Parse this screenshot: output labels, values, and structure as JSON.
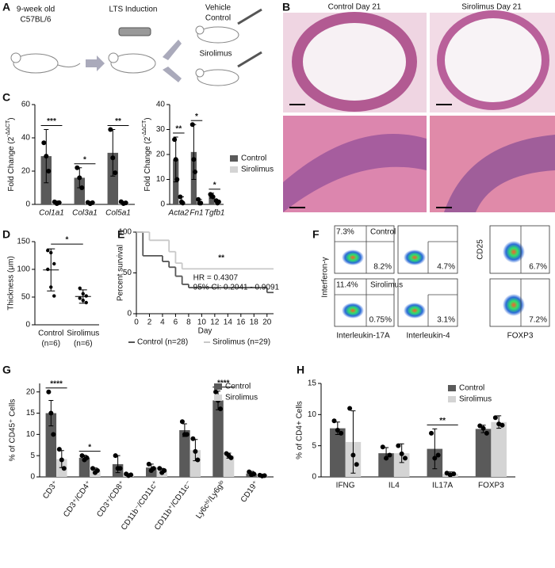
{
  "panel_labels": [
    "A",
    "B",
    "C",
    "D",
    "E",
    "F",
    "G",
    "H"
  ],
  "schematic": {
    "steps": [
      "9-week old",
      "C57BL/6",
      "LTS Induction",
      "Vehicle",
      "Control",
      "Sirolimus"
    ]
  },
  "histology": {
    "titles": [
      "Control Day 21",
      "Sirolimus Day 21"
    ]
  },
  "flow": {
    "top": [
      "7.3%",
      "Control",
      "8.2%",
      "4.7%",
      "6.7%"
    ],
    "bottom": [
      "11.4%",
      "Sirolimus",
      "0.75%",
      "3.1%",
      "7.2%"
    ],
    "axis_labels": [
      "Interferon-γ",
      "Interleukin-17A",
      "Interleukin-4",
      "CD25",
      "FOXP3"
    ]
  },
  "chart_data": [
    {
      "type": "bar",
      "y_label": [
        "Fold Change (2",
        "-ΔΔCT",
        ")"
      ],
      "categories": [
        "Col1a1",
        "Col3a1",
        "Col5a1"
      ],
      "ylim": [
        0,
        60
      ],
      "yticks": [
        0,
        20,
        40,
        60
      ],
      "series": [
        {
          "color": "#5a5a5a",
          "values": [
            29,
            16,
            31
          ],
          "errors": [
            16,
            6,
            14
          ],
          "points": [
            [
              37,
              29,
              20
            ],
            [
              22,
              16,
              10
            ],
            [
              45,
              28,
              19
            ]
          ]
        },
        {
          "color": "#d4d4d4",
          "values": [
            1,
            1,
            1
          ],
          "errors": [
            1,
            0.7,
            0.8
          ],
          "points": [
            [
              1.5,
              0.5,
              1
            ],
            [
              1.2,
              0.4,
              1
            ],
            [
              1.6,
              0.5,
              0.9
            ]
          ]
        }
      ],
      "significance": [
        "***",
        "*",
        "**"
      ]
    },
    {
      "type": "bar",
      "y_label": [
        "Fold Change (2",
        "-ΔΔCT",
        ")"
      ],
      "categories": [
        "Acta2",
        "Fn1",
        "Tgfb1"
      ],
      "ylim": [
        0,
        40
      ],
      "yticks": [
        0,
        10,
        20,
        30,
        40
      ],
      "series": [
        {
          "name": "Control",
          "color": "#5a5a5a",
          "values": [
            18,
            21,
            3.5
          ],
          "errors": [
            9,
            11,
            1
          ],
          "points": [
            [
              26,
              18,
              10
            ],
            [
              32,
              18,
              13
            ],
            [
              4,
              3.5,
              3
            ]
          ]
        },
        {
          "name": "Sirolimus",
          "color": "#d4d4d4",
          "values": [
            1.5,
            1,
            1
          ],
          "errors": [
            1.5,
            1,
            0.5
          ],
          "points": [
            [
              3,
              1,
              0.5
            ],
            [
              2,
              0.5,
              0.5
            ],
            [
              1.5,
              0.5,
              1
            ]
          ]
        }
      ],
      "significance": [
        "**",
        "*",
        "*"
      ],
      "legend": "right"
    },
    {
      "type": "dot",
      "y_label": "Thickness (μm)",
      "categories": [
        "Control",
        "Sirolimus"
      ],
      "category_notes": [
        "(n=6)",
        "(n=6)"
      ],
      "ylim": [
        0,
        150
      ],
      "yticks": [
        0,
        50,
        100,
        150
      ],
      "values": [
        99,
        51
      ],
      "errors": [
        38,
        12
      ],
      "points": [
        [
          134,
          130,
          110,
          100,
          68,
          52
        ],
        [
          66,
          56,
          52,
          48,
          44,
          40
        ]
      ],
      "significance": "*"
    },
    {
      "type": "survival",
      "y_label": "Percent survival",
      "x_label": "Day",
      "xlim": [
        0,
        21
      ],
      "xticks": [
        0,
        2,
        4,
        6,
        8,
        10,
        12,
        14,
        16,
        18,
        20
      ],
      "ylim": [
        0,
        100
      ],
      "yticks": [
        0,
        50,
        100
      ],
      "series": [
        {
          "name": "Control (n=28)",
          "color": "#555555",
          "x": [
            0,
            1,
            4,
            5,
            6,
            7,
            8,
            20
          ],
          "values": [
            100,
            71,
            64,
            57,
            46,
            36,
            32,
            26
          ]
        },
        {
          "name": "Sirolimus (n=29)",
          "color": "#c8c8c8",
          "x": [
            0,
            2,
            5,
            6,
            7
          ],
          "values": [
            100,
            90,
            76,
            62,
            55
          ]
        }
      ],
      "significance": "**",
      "annotations": [
        "HR = 0.4307",
        "95% CI: 0.2041 - 0.9091"
      ]
    },
    {
      "type": "bar",
      "y_label": "% of CD45⁺ Cells",
      "categories": [
        "CD3⁺",
        "CD3⁺/CD4⁺",
        "CD3⁺/CD8⁺",
        "CD11b⁻/CD11c⁺",
        "CD11b⁺/CD11c⁻",
        "Ly6cʰⁱ/Ly6gˡᵒ",
        "CD19⁺"
      ],
      "ylim": [
        0,
        22
      ],
      "yticks": [
        0,
        5,
        10,
        15,
        20
      ],
      "series": [
        {
          "name": "Control",
          "color": "#5a5a5a",
          "values": [
            15,
            4.5,
            3,
            2.2,
            11,
            18,
            0.8
          ],
          "errors": [
            3,
            0.6,
            2,
            0.8,
            1.5,
            2.2,
            0.5
          ],
          "points": [
            [
              20,
              15,
              10
            ],
            [
              5,
              4,
              4.5
            ],
            [
              5,
              2,
              2
            ],
            [
              3,
              1.5,
              2
            ],
            [
              13,
              10,
              10
            ],
            [
              20,
              18,
              16
            ],
            [
              1.2,
              0.5,
              0.7
            ]
          ]
        },
        {
          "name": "Sirolimus",
          "color": "#d4d4d4",
          "values": [
            4.2,
            1.5,
            0.5,
            1.5,
            6.3,
            5,
            0.3
          ],
          "errors": [
            2,
            0.6,
            0.2,
            0.5,
            2.5,
            0.6,
            0.1
          ],
          "points": [
            [
              6.5,
              4,
              2
            ],
            [
              2,
              1,
              1.5
            ],
            [
              0.7,
              0.3,
              0.5
            ],
            [
              2,
              1,
              1.5
            ],
            [
              9,
              6,
              4
            ],
            [
              5.5,
              5,
              4.5
            ],
            [
              0.4,
              0.2,
              0.3
            ]
          ]
        }
      ],
      "significance": [
        "****",
        "*",
        null,
        null,
        null,
        "****",
        null
      ],
      "legend": "top-right"
    },
    {
      "type": "bar",
      "y_label": "% of CD4+ Cells",
      "categories": [
        "IFNG",
        "IL4",
        "IL17A",
        "FOXP3"
      ],
      "ylim": [
        0,
        15
      ],
      "yticks": [
        0,
        5,
        10,
        15
      ],
      "series": [
        {
          "name": "Control",
          "color": "#5a5a5a",
          "values": [
            7.8,
            3.8,
            4.5,
            7.7
          ],
          "errors": [
            1,
            0.9,
            3.2,
            0.6
          ],
          "points": [
            [
              9,
              7.5,
              7
            ],
            [
              4.8,
              3,
              3.5
            ],
            [
              7,
              3,
              3.5
            ],
            [
              8.2,
              7.8,
              7
            ]
          ]
        },
        {
          "name": "Sirolimus",
          "color": "#d4d4d4",
          "values": [
            5.6,
            3.8,
            0.5,
            8.8
          ],
          "errors": [
            5,
            1.5,
            0.3,
            1
          ],
          "points": [
            [
              11,
              3.5,
              2
            ],
            [
              5,
              3.7,
              3
            ],
            [
              0.6,
              0.3,
              0.5
            ],
            [
              9.5,
              8.5,
              8.3
            ]
          ]
        }
      ],
      "significance": [
        null,
        null,
        "**",
        null
      ],
      "legend": "top-right"
    }
  ]
}
